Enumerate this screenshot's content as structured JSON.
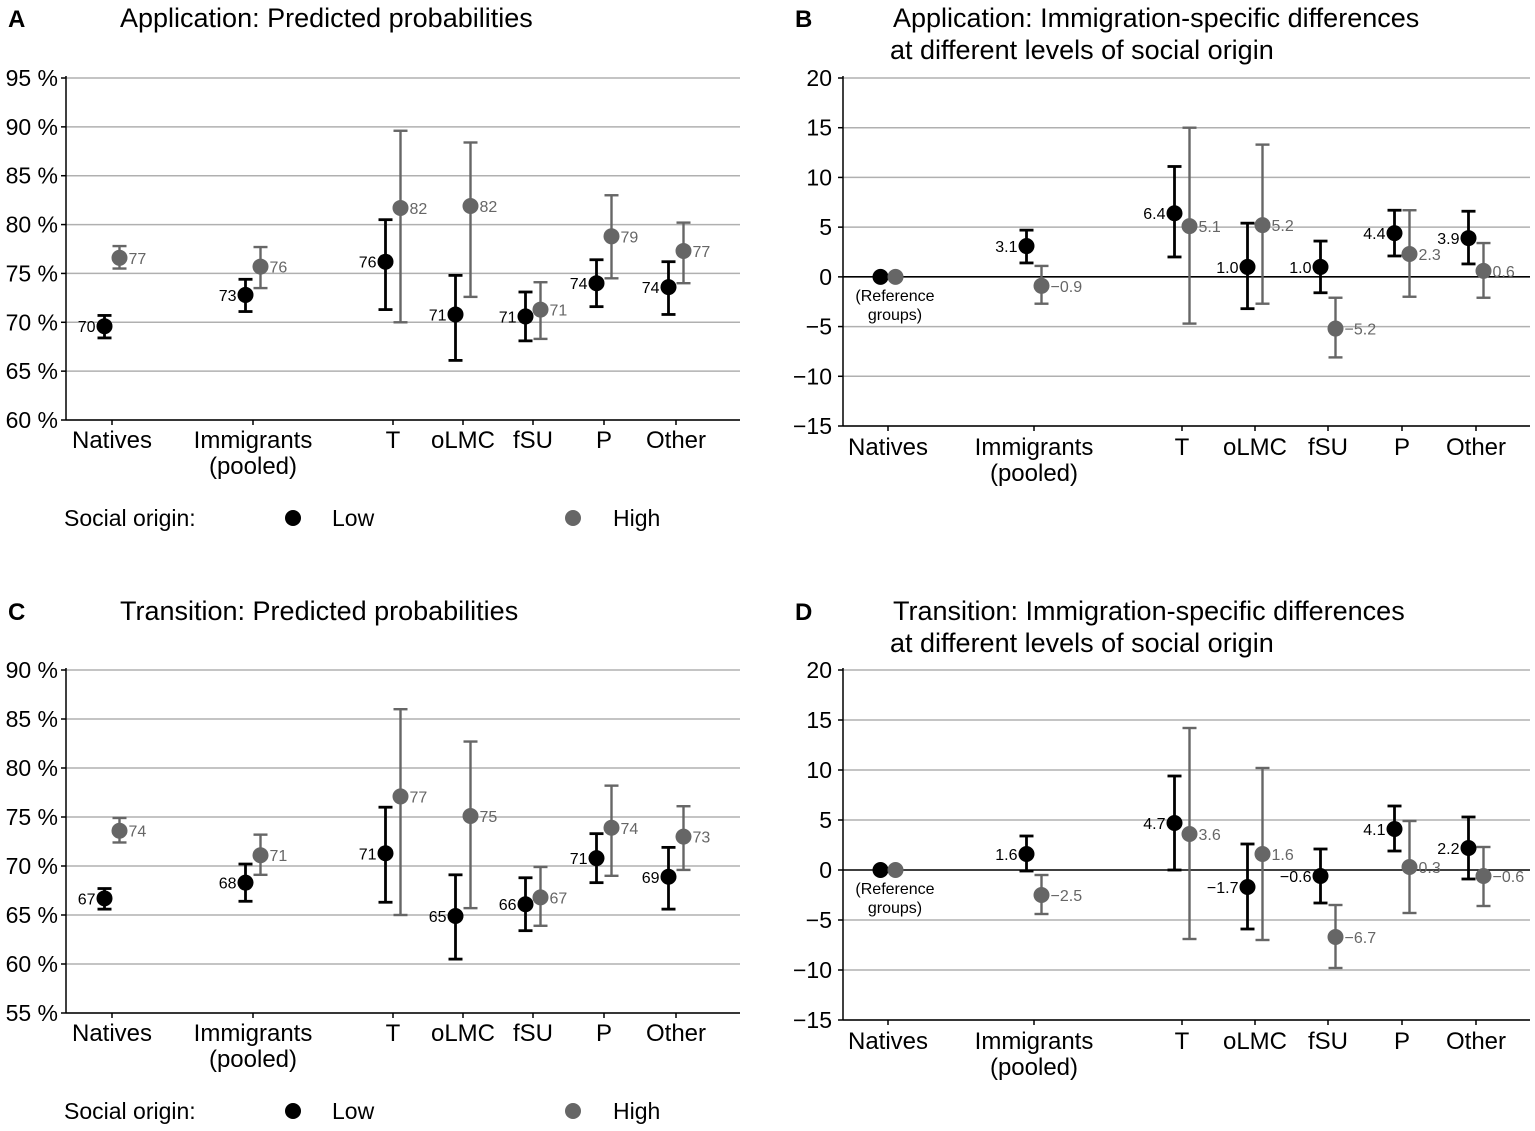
{
  "legend": {
    "title": "Social origin:",
    "low": "Low",
    "high": "High"
  },
  "reference_note": [
    "(Reference",
    "groups)"
  ],
  "colors": {
    "low": "#000000",
    "high": "#666666",
    "grid": "#b0b0b0"
  },
  "chart_data": [
    {
      "type": "scatter",
      "letter": "A",
      "title": [
        "Application: Predicted probabilities"
      ],
      "ylim": [
        60,
        95
      ],
      "yticks": [
        60,
        65,
        70,
        75,
        80,
        85,
        90,
        95
      ],
      "ytick_labels": [
        "60 %",
        "65 %",
        "70 %",
        "75 %",
        "80 %",
        "85 %",
        "90 %",
        "95 %"
      ],
      "categories": [
        [
          "Natives"
        ],
        [
          "Immigrants",
          "(pooled)"
        ],
        [
          "T"
        ],
        [
          "oLMC"
        ],
        [
          "fSU"
        ],
        [
          "P"
        ],
        [
          "Other"
        ]
      ],
      "series": [
        {
          "name": "Low",
          "values": [
            69.6,
            72.8,
            76.2,
            70.8,
            70.6,
            74.0,
            73.6
          ],
          "ci_upper": [
            70.7,
            74.4,
            80.5,
            74.8,
            73.1,
            76.4,
            76.2
          ],
          "ci_lower": [
            68.4,
            71.1,
            71.3,
            66.1,
            68.1,
            71.6,
            70.8
          ],
          "labels": [
            "70",
            "73",
            "76",
            "71",
            "71",
            "74",
            "74"
          ]
        },
        {
          "name": "High",
          "values": [
            76.6,
            75.7,
            81.7,
            81.9,
            71.3,
            78.8,
            77.3
          ],
          "ci_upper": [
            77.8,
            77.7,
            89.6,
            88.4,
            74.1,
            83.0,
            80.2
          ],
          "ci_lower": [
            75.5,
            73.5,
            70.0,
            72.6,
            68.3,
            74.5,
            74.0
          ],
          "labels": [
            "77",
            "76",
            "82",
            "82",
            "71",
            "79",
            "77"
          ]
        }
      ]
    },
    {
      "type": "scatter",
      "letter": "B",
      "title": [
        "Application: Immigration-specific differences",
        "at different levels of social origin"
      ],
      "ylim": [
        -15,
        20
      ],
      "yticks": [
        -15,
        -10,
        -5,
        0,
        5,
        10,
        15,
        20
      ],
      "ytick_labels": [
        "−15",
        "−10",
        "−5",
        "0",
        "5",
        "10",
        "15",
        "20"
      ],
      "categories": [
        [
          "Natives"
        ],
        [
          "Immigrants",
          "(pooled)"
        ],
        [
          "T"
        ],
        [
          "oLMC"
        ],
        [
          "fSU"
        ],
        [
          "P"
        ],
        [
          "Other"
        ]
      ],
      "series": [
        {
          "name": "Low",
          "values": [
            0,
            3.1,
            6.4,
            1.0,
            1.0,
            4.4,
            3.9
          ],
          "ci_upper": [
            null,
            4.7,
            11.1,
            5.4,
            3.6,
            6.7,
            6.6
          ],
          "ci_lower": [
            null,
            1.4,
            2.0,
            -3.2,
            -1.6,
            2.1,
            1.3
          ],
          "labels": [
            "",
            "3.1",
            "6.4",
            "1.0",
            "1.0",
            "4.4",
            "3.9"
          ]
        },
        {
          "name": "High",
          "values": [
            0,
            -0.9,
            5.1,
            5.2,
            -5.2,
            2.3,
            0.6
          ],
          "ci_upper": [
            null,
            1.1,
            15.0,
            13.3,
            -2.1,
            6.7,
            3.4
          ],
          "ci_lower": [
            null,
            -2.7,
            -4.7,
            -2.7,
            -8.1,
            -2.0,
            -2.1
          ],
          "labels": [
            "",
            "−0.9",
            "5.1",
            "5.2",
            "−5.2",
            "2.3",
            "0.6"
          ]
        }
      ]
    },
    {
      "type": "scatter",
      "letter": "C",
      "title": [
        "Transition: Predicted probabilities"
      ],
      "ylim": [
        55,
        90
      ],
      "yticks": [
        55,
        60,
        65,
        70,
        75,
        80,
        85,
        90
      ],
      "ytick_labels": [
        "55 %",
        "60 %",
        "65 %",
        "70 %",
        "75 %",
        "80 %",
        "85 %",
        "90 %"
      ],
      "categories": [
        [
          "Natives"
        ],
        [
          "Immigrants",
          "(pooled)"
        ],
        [
          "T"
        ],
        [
          "oLMC"
        ],
        [
          "fSU"
        ],
        [
          "P"
        ],
        [
          "Other"
        ]
      ],
      "series": [
        {
          "name": "Low",
          "values": [
            66.7,
            68.3,
            71.3,
            64.9,
            66.1,
            70.8,
            68.9
          ],
          "ci_upper": [
            67.7,
            70.2,
            76.0,
            69.1,
            68.8,
            73.3,
            71.9
          ],
          "ci_lower": [
            65.6,
            66.4,
            66.3,
            60.5,
            63.4,
            68.3,
            65.6
          ],
          "labels": [
            "67",
            "68",
            "71",
            "65",
            "66",
            "71",
            "69"
          ]
        },
        {
          "name": "High",
          "values": [
            73.6,
            71.1,
            77.1,
            75.1,
            66.8,
            73.9,
            73.0
          ],
          "ci_upper": [
            74.9,
            73.2,
            86.0,
            82.7,
            69.9,
            78.2,
            76.1
          ],
          "ci_lower": [
            72.4,
            69.1,
            65.0,
            65.7,
            63.9,
            69.0,
            69.6
          ],
          "labels": [
            "74",
            "71",
            "77",
            "75",
            "67",
            "74",
            "73"
          ]
        }
      ]
    },
    {
      "type": "scatter",
      "letter": "D",
      "title": [
        "Transition: Immigration-specific differences",
        "at different levels of social origin"
      ],
      "ylim": [
        -15,
        20
      ],
      "yticks": [
        -15,
        -10,
        -5,
        0,
        5,
        10,
        15,
        20
      ],
      "ytick_labels": [
        "−15",
        "−10",
        "−5",
        "0",
        "5",
        "10",
        "15",
        "20"
      ],
      "categories": [
        [
          "Natives"
        ],
        [
          "Immigrants",
          "(pooled)"
        ],
        [
          "T"
        ],
        [
          "oLMC"
        ],
        [
          "fSU"
        ],
        [
          "P"
        ],
        [
          "Other"
        ]
      ],
      "series": [
        {
          "name": "Low",
          "values": [
            0,
            1.6,
            4.7,
            -1.7,
            -0.6,
            4.1,
            2.2
          ],
          "ci_upper": [
            null,
            3.4,
            9.4,
            2.6,
            2.1,
            6.4,
            5.3
          ],
          "ci_lower": [
            null,
            -0.1,
            0.0,
            -5.9,
            -3.3,
            1.9,
            -0.9
          ],
          "labels": [
            "",
            "1.6",
            "4.7",
            "−1.7",
            "−0.6",
            "4.1",
            "2.2"
          ]
        },
        {
          "name": "High",
          "values": [
            0,
            -2.5,
            3.6,
            1.6,
            -6.7,
            0.3,
            -0.6
          ],
          "ci_upper": [
            null,
            -0.5,
            14.2,
            10.2,
            -3.5,
            4.9,
            2.3
          ],
          "ci_lower": [
            null,
            -4.4,
            -6.9,
            -7.0,
            -9.8,
            -4.3,
            -3.6
          ],
          "labels": [
            "",
            "−2.5",
            "3.6",
            "1.6",
            "−6.7",
            "0.3",
            "−0.6"
          ]
        }
      ]
    }
  ]
}
